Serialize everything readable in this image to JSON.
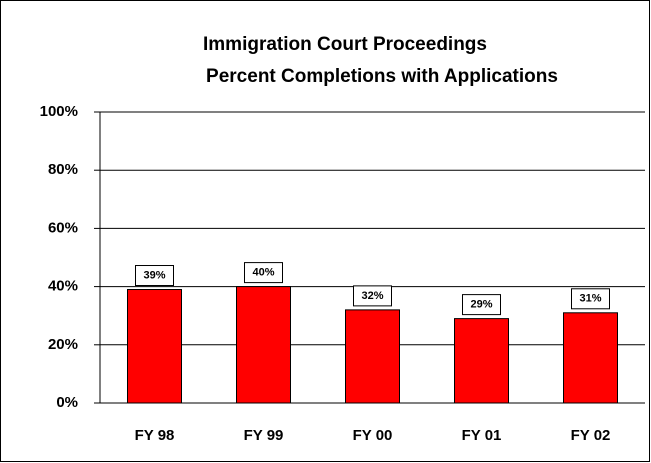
{
  "chart_data": {
    "type": "bar",
    "title": "Immigration Court Proceedings",
    "subtitle": "Percent Completions with Applications",
    "categories": [
      "FY 98",
      "FY 99",
      "FY 00",
      "FY 01",
      "FY 02"
    ],
    "values": [
      39,
      40,
      32,
      29,
      31
    ],
    "value_labels": [
      "39%",
      "40%",
      "32%",
      "29%",
      "31%"
    ],
    "color": "#ff0000",
    "ylim": [
      0,
      100
    ],
    "yticks": [
      {
        "value": 0,
        "label": "0%"
      },
      {
        "value": 20,
        "label": "20%"
      },
      {
        "value": 40,
        "label": "40%"
      },
      {
        "value": 60,
        "label": "60%"
      },
      {
        "value": 80,
        "label": "80%"
      },
      {
        "value": 100,
        "label": "100%"
      }
    ],
    "grid": true
  }
}
